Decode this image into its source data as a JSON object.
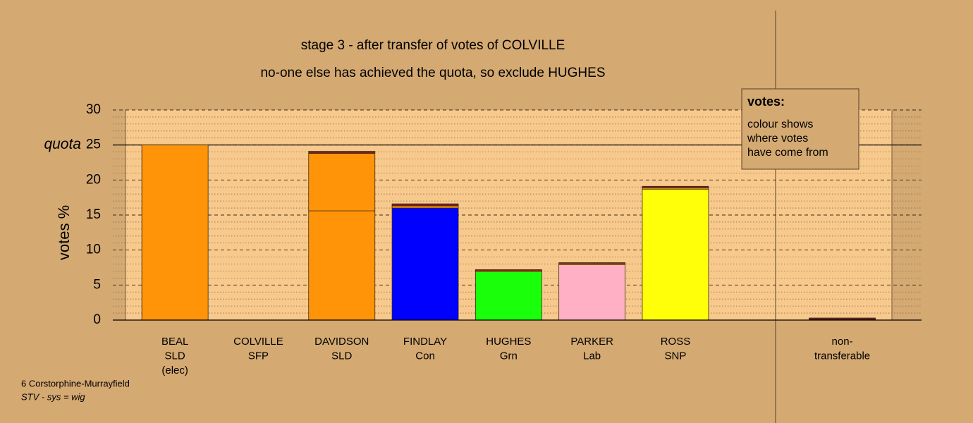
{
  "chart_data": {
    "type": "stacked-bar",
    "title": "stage 3 - after transfer of votes of COLVILLE",
    "subtitle": "no-one else has achieved the quota, so exclude HUGHES",
    "y_label": "votes %",
    "categories": [
      [
        "BEAL",
        "SLD",
        "(elec)"
      ],
      [
        "COLVILLE",
        "SFP"
      ],
      [
        "DAVIDSON",
        "SLD"
      ],
      [
        "FINDLAY",
        "Con"
      ],
      [
        "HUGHES",
        "Grn"
      ],
      [
        "PARKER",
        "Lab"
      ],
      [
        "ROSS",
        "SNP"
      ],
      null,
      [
        "non-",
        "transferable"
      ]
    ],
    "series": [
      {
        "colors": [
          "#ff9408",
          "#7a1f1f",
          "#ff9408",
          "#0000ff",
          "#1aff0a",
          "#ffb0c4",
          "#ffff0a",
          null,
          "#7a1f1f"
        ],
        "values": [
          25,
          0,
          15.6,
          16.0,
          6.9,
          7.9,
          18.7,
          null,
          0
        ]
      },
      {
        "color": "#ff9408",
        "values": [
          0,
          0,
          8.2,
          0.3,
          0.2,
          0.2,
          0.2,
          null,
          0.1
        ]
      },
      {
        "color": "#7a1f1f",
        "values": [
          0,
          0,
          0.3,
          0.3,
          0.1,
          0.1,
          0.2,
          null,
          0.2
        ]
      }
    ],
    "ylim": [
      0,
      30
    ],
    "yticks": [
      0,
      5,
      10,
      15,
      20,
      25,
      30
    ],
    "yminorticks": [
      1,
      2,
      3,
      4,
      6,
      7,
      8,
      9,
      11,
      12,
      13,
      14,
      16,
      17,
      18,
      19,
      21,
      22,
      23,
      24,
      26,
      27,
      28,
      29
    ],
    "quota": {
      "value": 25,
      "label": "quota"
    },
    "legend": {
      "title": "votes:",
      "lines": [
        "colour shows",
        "where votes",
        "have come from"
      ]
    },
    "footer": [
      "6 Corstorphine-Murrayfield",
      "STV - sys = wig"
    ]
  }
}
